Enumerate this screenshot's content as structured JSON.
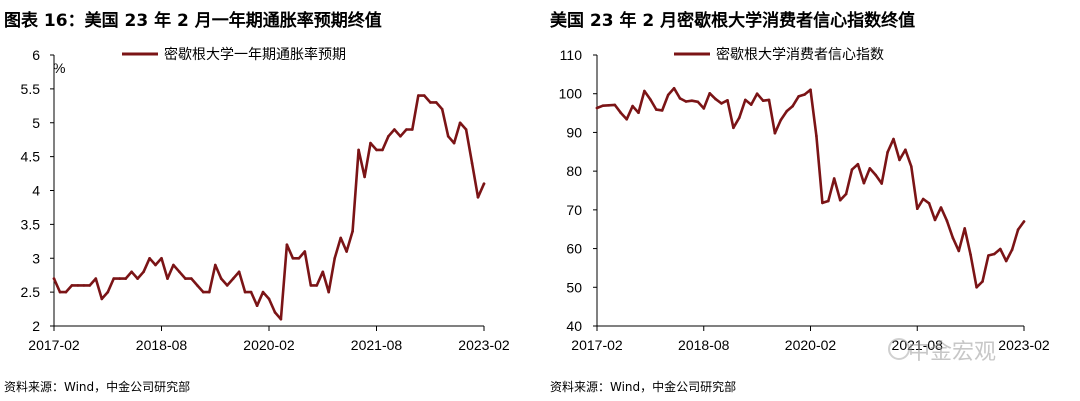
{
  "chart_data": [
    {
      "type": "line",
      "title": "图表 16：美国 23 年 2 月一年期通胀率预期终值",
      "ylabel": "%",
      "xlabel": "",
      "ylim": [
        2,
        6
      ],
      "yticks": [
        "2",
        "2.5",
        "3",
        "3.5",
        "4",
        "4.5",
        "5",
        "5.5",
        "6"
      ],
      "xtick_labels": [
        "2017-02",
        "2018-08",
        "2020-02",
        "2021-08",
        "2023-02"
      ],
      "legend_position": "top",
      "grid": false,
      "series": [
        {
          "name": "密歇根大学一年期通胀率预期",
          "color": "#7b1416",
          "x": [
            "2017-02",
            "2017-03",
            "2017-04",
            "2017-05",
            "2017-06",
            "2017-07",
            "2017-08",
            "2017-09",
            "2017-10",
            "2017-11",
            "2017-12",
            "2018-01",
            "2018-02",
            "2018-03",
            "2018-04",
            "2018-05",
            "2018-06",
            "2018-07",
            "2018-08",
            "2018-09",
            "2018-10",
            "2018-11",
            "2018-12",
            "2019-01",
            "2019-02",
            "2019-03",
            "2019-04",
            "2019-05",
            "2019-06",
            "2019-07",
            "2019-08",
            "2019-09",
            "2019-10",
            "2019-11",
            "2019-12",
            "2020-01",
            "2020-02",
            "2020-03",
            "2020-04",
            "2020-05",
            "2020-06",
            "2020-07",
            "2020-08",
            "2020-09",
            "2020-10",
            "2020-11",
            "2020-12",
            "2021-01",
            "2021-02",
            "2021-03",
            "2021-04",
            "2021-05",
            "2021-06",
            "2021-07",
            "2021-08",
            "2021-09",
            "2021-10",
            "2021-11",
            "2021-12",
            "2022-01",
            "2022-02",
            "2022-03",
            "2022-04",
            "2022-05",
            "2022-06",
            "2022-07",
            "2022-08",
            "2022-09",
            "2022-10",
            "2022-11",
            "2022-12",
            "2023-01",
            "2023-02"
          ],
          "values": [
            2.7,
            2.5,
            2.5,
            2.6,
            2.6,
            2.6,
            2.6,
            2.7,
            2.4,
            2.5,
            2.7,
            2.7,
            2.7,
            2.8,
            2.7,
            2.8,
            3.0,
            2.9,
            3.0,
            2.7,
            2.9,
            2.8,
            2.7,
            2.7,
            2.6,
            2.5,
            2.5,
            2.9,
            2.7,
            2.6,
            2.7,
            2.8,
            2.5,
            2.5,
            2.3,
            2.5,
            2.4,
            2.2,
            2.1,
            3.2,
            3.0,
            3.0,
            3.1,
            2.6,
            2.6,
            2.8,
            2.5,
            3.0,
            3.3,
            3.1,
            3.4,
            4.6,
            4.2,
            4.7,
            4.6,
            4.6,
            4.8,
            4.9,
            4.8,
            4.9,
            4.9,
            5.4,
            5.4,
            5.3,
            5.3,
            5.2,
            4.8,
            4.7,
            5.0,
            4.9,
            4.4,
            3.9,
            4.1
          ]
        }
      ]
    },
    {
      "type": "line",
      "title": "美国 23 年 2 月密歇根大学消费者信心指数终值",
      "ylabel": "",
      "xlabel": "",
      "ylim": [
        40,
        110
      ],
      "yticks": [
        "40",
        "50",
        "60",
        "70",
        "80",
        "90",
        "100",
        "110"
      ],
      "xtick_labels": [
        "2017-02",
        "2018-08",
        "2020-02",
        "2021-08",
        "2023-02"
      ],
      "legend_position": "top",
      "grid": false,
      "series": [
        {
          "name": "密歇根大学消费者信心指数",
          "color": "#7b1416",
          "x": [
            "2017-02",
            "2017-03",
            "2017-04",
            "2017-05",
            "2017-06",
            "2017-07",
            "2017-08",
            "2017-09",
            "2017-10",
            "2017-11",
            "2017-12",
            "2018-01",
            "2018-02",
            "2018-03",
            "2018-04",
            "2018-05",
            "2018-06",
            "2018-07",
            "2018-08",
            "2018-09",
            "2018-10",
            "2018-11",
            "2018-12",
            "2019-01",
            "2019-02",
            "2019-03",
            "2019-04",
            "2019-05",
            "2019-06",
            "2019-07",
            "2019-08",
            "2019-09",
            "2019-10",
            "2019-11",
            "2019-12",
            "2020-01",
            "2020-02",
            "2020-03",
            "2020-04",
            "2020-05",
            "2020-06",
            "2020-07",
            "2020-08",
            "2020-09",
            "2020-10",
            "2020-11",
            "2020-12",
            "2021-01",
            "2021-02",
            "2021-03",
            "2021-04",
            "2021-05",
            "2021-06",
            "2021-07",
            "2021-08",
            "2021-09",
            "2021-10",
            "2021-11",
            "2021-12",
            "2022-01",
            "2022-02",
            "2022-03",
            "2022-04",
            "2022-05",
            "2022-06",
            "2022-07",
            "2022-08",
            "2022-09",
            "2022-10",
            "2022-11",
            "2022-12",
            "2023-01",
            "2023-02"
          ],
          "values": [
            96.3,
            96.9,
            97.0,
            97.1,
            95.1,
            93.4,
            96.8,
            95.1,
            100.7,
            98.5,
            95.9,
            95.7,
            99.7,
            101.4,
            98.8,
            98.0,
            98.2,
            97.9,
            96.2,
            100.1,
            98.6,
            97.5,
            98.3,
            91.2,
            93.8,
            98.4,
            97.2,
            100.0,
            98.2,
            98.4,
            89.8,
            93.2,
            95.5,
            96.8,
            99.3,
            99.8,
            101.0,
            89.1,
            71.8,
            72.3,
            78.1,
            72.5,
            74.1,
            80.4,
            81.8,
            76.9,
            80.7,
            79.0,
            76.8,
            84.9,
            88.3,
            82.9,
            85.5,
            81.2,
            70.3,
            72.8,
            71.7,
            67.4,
            70.6,
            67.2,
            62.8,
            59.4,
            65.2,
            58.4,
            50.0,
            51.5,
            58.2,
            58.6,
            59.9,
            56.8,
            59.7,
            64.9,
            67.0
          ]
        }
      ]
    }
  ],
  "sources": [
    "资料来源：Wind，中金公司研究部",
    "资料来源：Wind，中金公司研究部"
  ],
  "watermark": "中金宏观"
}
